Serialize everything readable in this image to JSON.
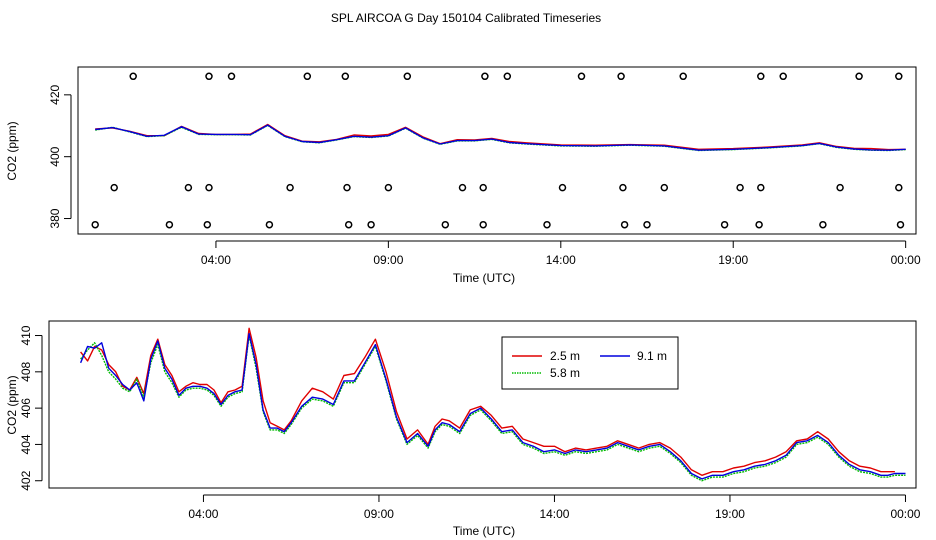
{
  "figure_title": "SPL AIRCOA G  Day 150104  Calibrated Timeseries",
  "colors": {
    "s25": "#e00000",
    "s58": "#00bb00",
    "s91": "#0000dd",
    "axis": "#000000"
  },
  "chart_data": [
    {
      "type": "line",
      "panel": "top",
      "title": "",
      "xlabel": "Time (UTC)",
      "ylabel": "CO2 (ppm)",
      "xlim": [
        0,
        24.3
      ],
      "ylim": [
        375,
        429
      ],
      "x_ticks": [
        4,
        9,
        14,
        19,
        24
      ],
      "x_tick_labels": [
        "04:00",
        "09:00",
        "14:00",
        "19:00",
        "00:00"
      ],
      "y_ticks": [
        380,
        400,
        420
      ],
      "y_tick_labels": [
        "380",
        "400",
        "420"
      ],
      "series": [
        {
          "name": "2.5 m",
          "x": [
            0.5,
            1.0,
            1.5,
            2.0,
            2.5,
            3.0,
            3.5,
            4.0,
            4.5,
            5.0,
            5.5,
            6.0,
            6.5,
            7.0,
            7.5,
            8.0,
            8.5,
            9.0,
            9.5,
            10.0,
            10.5,
            11.0,
            11.5,
            12.0,
            12.5,
            13.0,
            14.0,
            15.0,
            16.0,
            17.0,
            18.0,
            19.0,
            20.0,
            21.0,
            21.5,
            22.0,
            22.5,
            23.0,
            23.5,
            24.0
          ],
          "y": [
            409.0,
            409.3,
            408.2,
            406.8,
            406.8,
            409.8,
            407.5,
            407.2,
            407.2,
            407.3,
            410.4,
            406.8,
            405.0,
            404.8,
            405.6,
            407.0,
            406.7,
            407.2,
            409.5,
            406.4,
            404.2,
            405.5,
            405.4,
            405.9,
            404.9,
            404.5,
            403.8,
            403.7,
            403.9,
            403.7,
            402.4,
            402.6,
            403.1,
            403.8,
            404.5,
            403.3,
            402.7,
            402.6,
            402.3,
            402.4
          ]
        },
        {
          "name": "5.8 m",
          "x": [
            0.5,
            1.0,
            1.5,
            2.0,
            2.5,
            3.0,
            3.5,
            4.0,
            4.5,
            5.0,
            5.5,
            6.0,
            6.5,
            7.0,
            7.5,
            8.0,
            8.5,
            9.0,
            9.5,
            10.0,
            10.5,
            11.0,
            11.5,
            12.0,
            12.5,
            13.0,
            14.0,
            15.0,
            16.0,
            17.0,
            18.0,
            19.0,
            20.0,
            21.0,
            21.5,
            22.0,
            22.5,
            23.0,
            23.5,
            24.0
          ],
          "y": [
            408.6,
            409.5,
            408.0,
            406.5,
            406.8,
            409.5,
            407.2,
            407.1,
            407.1,
            407.0,
            410.1,
            406.5,
            404.8,
            404.5,
            405.4,
            406.5,
            406.2,
            406.7,
            409.2,
            406.0,
            404.0,
            405.1,
            405.1,
            405.6,
            404.5,
            404.1,
            403.5,
            403.4,
            403.7,
            403.4,
            402.0,
            402.3,
            402.8,
            403.5,
            404.2,
            403.0,
            402.4,
            402.1,
            402.0,
            402.3
          ]
        },
        {
          "name": "9.1 m",
          "x": [
            0.5,
            1.0,
            1.5,
            2.0,
            2.5,
            3.0,
            3.5,
            4.0,
            4.5,
            5.0,
            5.5,
            6.0,
            6.5,
            7.0,
            7.5,
            8.0,
            8.5,
            9.0,
            9.5,
            10.0,
            10.5,
            11.0,
            11.5,
            12.0,
            12.5,
            13.0,
            14.0,
            15.0,
            16.0,
            17.0,
            18.0,
            19.0,
            20.0,
            21.0,
            21.5,
            22.0,
            22.5,
            23.0,
            23.5,
            24.0
          ],
          "y": [
            408.8,
            409.4,
            408.1,
            406.6,
            406.9,
            409.7,
            407.3,
            407.2,
            407.2,
            407.1,
            410.2,
            406.6,
            404.9,
            404.6,
            405.5,
            406.6,
            406.3,
            406.8,
            409.3,
            406.1,
            404.1,
            405.2,
            405.2,
            405.7,
            404.6,
            404.2,
            403.6,
            403.5,
            403.8,
            403.5,
            402.1,
            402.4,
            402.9,
            403.6,
            404.3,
            403.1,
            402.5,
            402.2,
            402.1,
            402.4
          ]
        }
      ],
      "markers_rows": [
        {
          "y": 426,
          "x": [
            1.6,
            3.8,
            4.45,
            6.65,
            7.75,
            9.55,
            11.8,
            12.45,
            14.6,
            15.75,
            17.55,
            19.8,
            20.45,
            22.65,
            23.8
          ]
        },
        {
          "y": 390,
          "x": [
            1.05,
            3.2,
            3.8,
            6.15,
            7.8,
            9.0,
            11.15,
            11.75,
            14.05,
            15.8,
            17.0,
            19.2,
            19.8,
            22.1,
            23.8
          ]
        },
        {
          "y": 378,
          "x": [
            0.5,
            2.65,
            3.75,
            5.55,
            7.85,
            8.5,
            10.65,
            11.75,
            13.6,
            15.85,
            16.5,
            18.75,
            19.75,
            21.6,
            23.85
          ]
        }
      ]
    },
    {
      "type": "line",
      "panel": "bottom",
      "title": "",
      "xlabel": "Time (UTC)",
      "ylabel": "CO2 (ppm)",
      "xlim": [
        -0.4,
        24.3
      ],
      "ylim": [
        401.6,
        410.8
      ],
      "x_ticks": [
        4,
        9,
        14,
        19,
        24
      ],
      "x_tick_labels": [
        "04:00",
        "09:00",
        "14:00",
        "19:00",
        "00:00"
      ],
      "y_ticks": [
        402,
        404,
        406,
        408,
        410
      ],
      "y_tick_labels": [
        "402",
        "404",
        "406",
        "408",
        "410"
      ],
      "legend": {
        "placement": "top-center",
        "entries": [
          "2.5 m",
          "5.8 m",
          "9.1 m"
        ]
      },
      "series": [
        {
          "name": "2.5 m",
          "x": [
            0.5,
            0.7,
            0.9,
            1.1,
            1.3,
            1.5,
            1.7,
            1.9,
            2.1,
            2.3,
            2.5,
            2.7,
            2.9,
            3.1,
            3.3,
            3.5,
            3.7,
            3.9,
            4.1,
            4.3,
            4.5,
            4.7,
            4.9,
            5.1,
            5.3,
            5.5,
            5.7,
            5.9,
            6.1,
            6.3,
            6.5,
            6.8,
            7.1,
            7.4,
            7.7,
            8.0,
            8.3,
            8.6,
            8.9,
            9.2,
            9.5,
            9.8,
            10.1,
            10.4,
            10.6,
            10.8,
            11.0,
            11.3,
            11.6,
            11.9,
            12.2,
            12.5,
            12.8,
            13.1,
            13.4,
            13.7,
            14.0,
            14.3,
            14.6,
            14.9,
            15.2,
            15.5,
            15.8,
            16.1,
            16.4,
            16.7,
            17.0,
            17.3,
            17.6,
            17.9,
            18.2,
            18.5,
            18.8,
            19.1,
            19.4,
            19.7,
            20.0,
            20.3,
            20.6,
            20.9,
            21.2,
            21.5,
            21.8,
            22.1,
            22.4,
            22.7,
            23.0,
            23.3,
            23.5,
            23.7
          ],
          "y": [
            409.1,
            408.6,
            409.4,
            409.2,
            408.4,
            408.0,
            407.2,
            407.0,
            407.7,
            406.8,
            408.9,
            409.8,
            408.4,
            407.8,
            406.9,
            407.2,
            407.4,
            407.3,
            407.3,
            407.0,
            406.3,
            406.9,
            407.0,
            407.2,
            410.4,
            408.8,
            406.4,
            405.2,
            405.0,
            404.8,
            405.3,
            406.4,
            407.1,
            406.9,
            406.5,
            407.8,
            407.9,
            408.8,
            409.8,
            408.0,
            405.8,
            404.3,
            404.8,
            404.0,
            405.0,
            405.4,
            405.3,
            404.9,
            405.9,
            406.1,
            405.6,
            404.9,
            405.0,
            404.3,
            404.1,
            403.9,
            403.9,
            403.6,
            403.8,
            403.7,
            403.8,
            403.9,
            404.2,
            404.0,
            403.8,
            404.0,
            404.1,
            403.8,
            403.3,
            402.6,
            402.3,
            402.5,
            402.5,
            402.7,
            402.8,
            403.0,
            403.1,
            403.3,
            403.6,
            404.2,
            404.3,
            404.7,
            404.3,
            403.6,
            403.1,
            402.8,
            402.7,
            402.5,
            402.5,
            402.5
          ]
        },
        {
          "name": "5.8 m",
          "x": [
            0.5,
            0.7,
            0.9,
            1.1,
            1.3,
            1.5,
            1.7,
            1.9,
            2.1,
            2.3,
            2.5,
            2.7,
            2.9,
            3.1,
            3.3,
            3.5,
            3.7,
            3.9,
            4.1,
            4.3,
            4.5,
            4.7,
            4.9,
            5.1,
            5.3,
            5.5,
            5.7,
            5.9,
            6.1,
            6.3,
            6.5,
            6.8,
            7.1,
            7.4,
            7.7,
            8.0,
            8.3,
            8.6,
            8.9,
            9.2,
            9.5,
            9.8,
            10.1,
            10.4,
            10.6,
            10.8,
            11.0,
            11.3,
            11.6,
            11.9,
            12.2,
            12.5,
            12.8,
            13.1,
            13.4,
            13.7,
            14.0,
            14.3,
            14.6,
            14.9,
            15.2,
            15.5,
            15.8,
            16.1,
            16.4,
            16.7,
            17.0,
            17.3,
            17.6,
            17.9,
            18.2,
            18.5,
            18.8,
            19.1,
            19.4,
            19.7,
            20.0,
            20.3,
            20.6,
            20.9,
            21.2,
            21.5,
            21.8,
            22.1,
            22.4,
            22.7,
            23.0,
            23.3,
            23.5,
            23.7,
            24.0
          ],
          "y": [
            408.7,
            409.2,
            409.6,
            408.9,
            408.0,
            407.6,
            407.1,
            406.9,
            407.6,
            406.6,
            408.5,
            409.5,
            408.0,
            407.4,
            406.6,
            407.0,
            407.1,
            407.1,
            407.0,
            406.7,
            406.1,
            406.6,
            406.8,
            406.9,
            410.0,
            408.2,
            405.8,
            404.8,
            404.8,
            404.6,
            405.1,
            406.0,
            406.5,
            406.4,
            406.1,
            407.4,
            407.4,
            408.4,
            409.4,
            407.5,
            405.4,
            404.0,
            404.5,
            403.8,
            404.7,
            405.1,
            405.0,
            404.6,
            405.6,
            405.9,
            405.3,
            404.6,
            404.7,
            404.0,
            403.8,
            403.5,
            403.6,
            403.4,
            403.6,
            403.5,
            403.6,
            403.7,
            404.0,
            403.8,
            403.6,
            403.8,
            403.9,
            403.5,
            403.0,
            402.3,
            402.0,
            402.2,
            402.2,
            402.4,
            402.5,
            402.7,
            402.8,
            403.0,
            403.3,
            404.0,
            404.1,
            404.4,
            404.0,
            403.3,
            402.8,
            402.5,
            402.4,
            402.2,
            402.2,
            402.3,
            402.3
          ]
        },
        {
          "name": "9.1 m",
          "x": [
            0.5,
            0.7,
            0.9,
            1.1,
            1.3,
            1.5,
            1.7,
            1.9,
            2.1,
            2.3,
            2.5,
            2.7,
            2.9,
            3.1,
            3.3,
            3.5,
            3.7,
            3.9,
            4.1,
            4.3,
            4.5,
            4.7,
            4.9,
            5.1,
            5.3,
            5.5,
            5.7,
            5.9,
            6.1,
            6.3,
            6.5,
            6.8,
            7.1,
            7.4,
            7.7,
            8.0,
            8.3,
            8.6,
            8.9,
            9.2,
            9.5,
            9.8,
            10.1,
            10.4,
            10.6,
            10.8,
            11.0,
            11.3,
            11.6,
            11.9,
            12.2,
            12.5,
            12.8,
            13.1,
            13.4,
            13.7,
            14.0,
            14.3,
            14.6,
            14.9,
            15.2,
            15.5,
            15.8,
            16.1,
            16.4,
            16.7,
            17.0,
            17.3,
            17.6,
            17.9,
            18.2,
            18.5,
            18.8,
            19.1,
            19.4,
            19.7,
            20.0,
            20.3,
            20.6,
            20.9,
            21.2,
            21.5,
            21.8,
            22.1,
            22.4,
            22.7,
            23.0,
            23.3,
            23.5,
            23.7,
            24.0
          ],
          "y": [
            408.5,
            409.4,
            409.3,
            409.6,
            408.2,
            407.8,
            407.3,
            407.0,
            407.4,
            406.4,
            408.7,
            409.7,
            408.2,
            407.6,
            406.7,
            407.1,
            407.2,
            407.2,
            407.1,
            406.8,
            406.2,
            406.7,
            406.9,
            407.0,
            410.1,
            408.4,
            405.9,
            404.9,
            404.9,
            404.7,
            405.2,
            406.1,
            406.6,
            406.5,
            406.2,
            407.5,
            407.5,
            408.5,
            409.5,
            407.6,
            405.5,
            404.1,
            404.6,
            403.9,
            404.8,
            405.2,
            405.1,
            404.7,
            405.7,
            406.0,
            405.4,
            404.7,
            404.8,
            404.1,
            403.9,
            403.6,
            403.7,
            403.5,
            403.7,
            403.6,
            403.7,
            403.8,
            404.1,
            403.9,
            403.7,
            403.9,
            404.0,
            403.6,
            403.1,
            402.4,
            402.1,
            402.3,
            402.3,
            402.5,
            402.6,
            402.8,
            402.9,
            403.1,
            403.4,
            404.1,
            404.2,
            404.5,
            404.1,
            403.4,
            402.9,
            402.6,
            402.5,
            402.3,
            402.3,
            402.4,
            402.4
          ]
        }
      ]
    }
  ]
}
